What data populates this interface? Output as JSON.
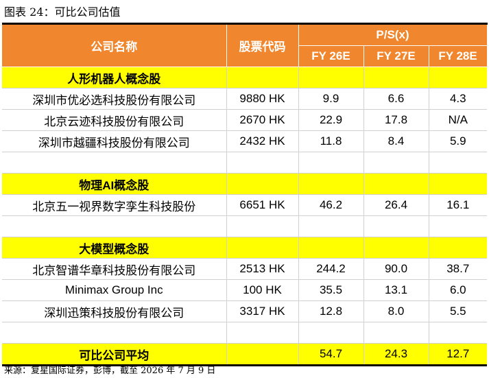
{
  "title": "图表 24：可比公司估值",
  "table": {
    "columns": [
      "公司名称",
      "股票代码"
    ],
    "ps_header": "P/S(x)",
    "years": [
      "FY 26E",
      "FY 27E",
      "FY 28E"
    ],
    "sections": [
      {
        "name": "人形机器人概念股",
        "rows": [
          [
            "深圳市优必选科技股份有限公司",
            "9880 HK",
            "9.9",
            "6.6",
            "4.3"
          ],
          [
            "北京云迹科技股份有限公司",
            "2670 HK",
            "22.9",
            "17.8",
            "N/A"
          ],
          [
            "深圳市越疆科技股份有限公司",
            "2432 HK",
            "11.8",
            "8.4",
            "5.9"
          ]
        ]
      },
      {
        "name": "物理AI概念股",
        "rows": [
          [
            "北京五一视界数字孪生科技股份",
            "6651 HK",
            "46.2",
            "26.4",
            "16.1"
          ]
        ]
      },
      {
        "name": "大模型概念股",
        "rows": [
          [
            "北京智谱华章科技股份有限公司",
            "2513 HK",
            "244.2",
            "90.0",
            "38.7"
          ],
          [
            "Minimax Group Inc",
            "100 HK",
            "35.5",
            "13.1",
            "6.0"
          ],
          [
            "深圳迅策科技股份有限公司",
            "3317 HK",
            "12.8",
            "8.0",
            "5.5"
          ]
        ]
      }
    ],
    "average": {
      "label": "可比公司平均",
      "values": [
        "54.7",
        "24.3",
        "12.7"
      ]
    }
  },
  "source": "来源：复星国际证券，彭博，截至 2026 年 7 月 9 日"
}
